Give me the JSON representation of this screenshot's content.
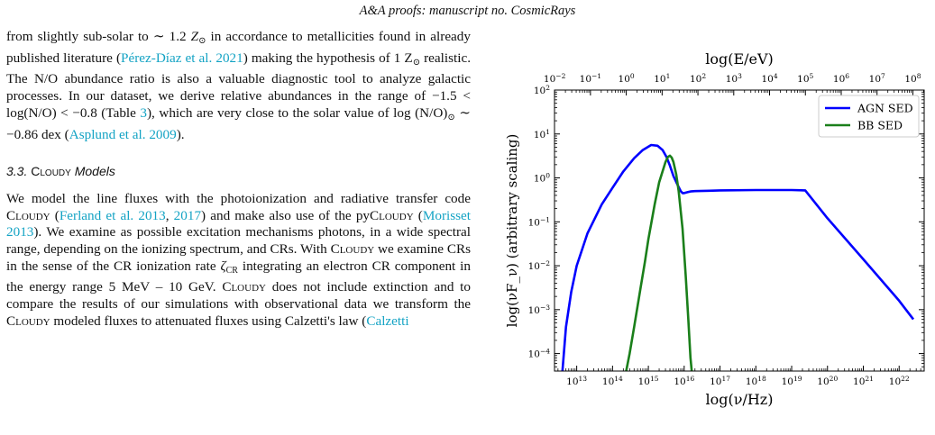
{
  "header": {
    "running_head": "A&A proofs: manuscript no. CosmicRays"
  },
  "para1": {
    "t1": "from slightly sub-solar to ∼ 1.2",
    "zsym": "Z",
    "t2": " in accordance to metallicities found in already published literature (",
    "cite1": "Pérez-Díaz et al. 2021",
    "t3": ") making the hypothesis of 1 Z",
    "t4": " realistic. The N/O abundance ratio is also a valuable diagnostic tool to analyze galactic processes. In our dataset, we derive relative abundances in the range of −1.5 < log(N/O) < −0.8 (Table ",
    "cite2": "3",
    "t5": "), which are very close to the solar value of log (N/O)",
    "t6": " ∼ −0.86 dex (",
    "cite3": "Asplund et al. 2009",
    "t7": ").",
    "sun": "⊙"
  },
  "section": {
    "number": "3.3.",
    "title_sc": "Cloudy",
    "title_rest": " Models"
  },
  "para2": {
    "t1": "We model the line fluxes with the photoionization and radiative transfer code ",
    "cloudy": "Cloudy",
    "t2": " (",
    "cite1": "Ferland et al. 2013",
    "sep": ", ",
    "cite2": "2017",
    "t3": ") and make also use of the py",
    "t4": " (",
    "cite3": "Morisset 2013",
    "t5": "). We examine as possible excitation mechanisms photons, in a wide spectral range, depending on the ionizing spectrum, and CRs. With ",
    "t6": " we examine CRs in the sense of the CR ionization rate ",
    "zeta": "ζ",
    "zsub": "CR",
    "t7": " integrating an electron CR component in the energy range 5 MeV – 10 GeV. ",
    "t8": " does not include extinction and to compare the results of our simulations with observational data we transform the ",
    "t9": " modeled fluxes to attenuated fluxes using Calzetti's law (",
    "cite4": "Calzetti"
  },
  "chart_data": {
    "type": "line",
    "title": "",
    "xlabel": "log(ν/Hz)",
    "ylabel": "log(νF_ν) (arbitrary scaling)",
    "x2label": "log(E/eV)",
    "xscale": "log",
    "yscale": "log",
    "xlim": [
      2400000000000.0,
      5e+22
    ],
    "ylim": [
      4e-05,
      100
    ],
    "x_ticks": [
      "10^13",
      "10^14",
      "10^15",
      "10^16",
      "10^17",
      "10^18",
      "10^19",
      "10^20",
      "10^21",
      "10^22"
    ],
    "y_ticks": [
      "10^-4",
      "10^-3",
      "10^-2",
      "10^-1",
      "10^0",
      "10^1",
      "10^2"
    ],
    "x2_ticks": [
      "10^-2",
      "10^-1",
      "10^0",
      "10^1",
      "10^2",
      "10^3",
      "10^4",
      "10^5",
      "10^6",
      "10^7",
      "10^8"
    ],
    "legend_position": "top-right",
    "series": [
      {
        "name": "AGN SED",
        "color": "#0000ff",
        "x": [
          3500000000000.0,
          3800000000000.0,
          4000000000000.0,
          5000000000000.0,
          7000000000000.0,
          10000000000000.0,
          20000000000000.0,
          50000000000000.0,
          100000000000000.0,
          200000000000000.0,
          400000000000000.0,
          700000000000000.0,
          1200000000000000.0,
          1800000000000000.0,
          2500000000000000.0,
          3200000000000000.0,
          4000000000000000.0,
          5000000000000000.0,
          6500000000000000.0,
          8000000000000000.0,
          9000000000000000.0,
          1e+16,
          1.2e+16,
          1.5e+16,
          2e+16,
          5e+16,
          1e+17,
          1e+18,
          1e+19,
          2.4e+19,
          1e+20,
          1e+21,
          1e+22,
          2.5e+22
        ],
        "y": [
          4e-05,
          3e-05,
          4e-05,
          0.0004,
          0.0025,
          0.01,
          0.055,
          0.25,
          0.6,
          1.4,
          2.8,
          4.3,
          5.6,
          5.4,
          4.3,
          3.0,
          1.9,
          1.1,
          0.7,
          0.5,
          0.45,
          0.45,
          0.47,
          0.49,
          0.5,
          0.51,
          0.52,
          0.53,
          0.53,
          0.52,
          0.12,
          0.014,
          0.0016,
          0.0006
        ]
      },
      {
        "name": "BB SED",
        "color": "#1a7f1a",
        "x": [
          240000000000000.0,
          300000000000000.0,
          400000000000000.0,
          600000000000000.0,
          800000000000000.0,
          1000000000000000.0,
          1500000000000000.0,
          2000000000000000.0,
          3000000000000000.0,
          3500000000000000.0,
          4000000000000000.0,
          4500000000000000.0,
          5000000000000000.0,
          6000000000000000.0,
          7000000000000000.0,
          9000000000000000.0,
          1.1e+16,
          1.3e+16,
          1.5e+16,
          1.62e+16
        ],
        "y": [
          4e-05,
          0.0001,
          0.0004,
          0.003,
          0.012,
          0.04,
          0.25,
          0.8,
          2.3,
          3.0,
          3.2,
          2.9,
          2.3,
          1.2,
          0.5,
          0.07,
          0.006,
          0.0006,
          8e-05,
          4e-05
        ]
      }
    ]
  }
}
